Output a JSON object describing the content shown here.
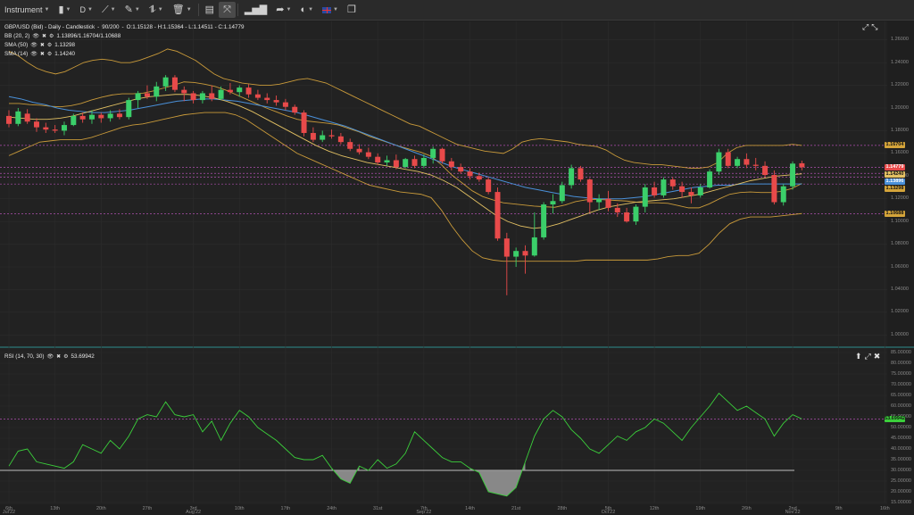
{
  "toolbar": {
    "instrument_label": "Instrument",
    "timeframe_label": "D",
    "flag": "uk-flag-icon"
  },
  "chart_header": {
    "title": "GBP/USD (Bid) - Daily - Candlestick",
    "candles_count": "90/200",
    "ohlc": "O:1.15128 - H:1.15364 - L:1.14511 - C:1.14779"
  },
  "indicators": [
    {
      "name": "BB (20, 2)",
      "value": "1.13896/1.16704/1.10688"
    },
    {
      "name": "SMA (50)",
      "value": "1.13298"
    },
    {
      "name": "SMA (14)",
      "value": "1.14240"
    }
  ],
  "rsi_header": {
    "name": "RSI (14, 70, 30)",
    "value": "53.69942"
  },
  "price_tags": [
    {
      "text": "1.16704",
      "price": 1.16704,
      "bg": "#d4a43a",
      "fg": "#111111"
    },
    {
      "text": "1.14779",
      "price": 1.14779,
      "bg": "#e84a4a",
      "fg": "#ffffff"
    },
    {
      "text": "1.14240",
      "price": 1.1424,
      "bg": "#e3c163",
      "fg": "#111111"
    },
    {
      "text": "1.13896",
      "price": 1.13896,
      "bg": "#4a90d9",
      "fg": "#ffffff"
    },
    {
      "text": "1.13298",
      "price": 1.13298,
      "bg": "#d4a43a",
      "fg": "#111111"
    },
    {
      "text": "1.10688",
      "price": 1.10688,
      "bg": "#d4a43a",
      "fg": "#111111"
    }
  ],
  "rsi_tag": {
    "text": "53.69942",
    "bg": "#3bcf3b",
    "fg": "#111111"
  },
  "price_axis": [
    "1.26000",
    "1.24000",
    "1.22000",
    "1.20000",
    "1.18000",
    "1.16000",
    "1.14000",
    "1.12000",
    "1.10000",
    "1.08000",
    "1.06000",
    "1.04000",
    "1.02000",
    "1.00000"
  ],
  "rsi_axis": [
    "85.00000",
    "80.00000",
    "75.00000",
    "70.00000",
    "65.00000",
    "60.00000",
    "55.00000",
    "50.00000",
    "45.00000",
    "40.00000",
    "35.00000",
    "30.00000",
    "25.00000",
    "20.00000",
    "15.00000"
  ],
  "x_axis": [
    {
      "label": "6th",
      "sub": "Jul'22"
    },
    {
      "label": "13th",
      "sub": ""
    },
    {
      "label": "20th",
      "sub": ""
    },
    {
      "label": "27th",
      "sub": ""
    },
    {
      "label": "3rd",
      "sub": "Aug'22"
    },
    {
      "label": "10th",
      "sub": ""
    },
    {
      "label": "17th",
      "sub": ""
    },
    {
      "label": "24th",
      "sub": ""
    },
    {
      "label": "31st",
      "sub": ""
    },
    {
      "label": "7th",
      "sub": "Sep'22"
    },
    {
      "label": "14th",
      "sub": ""
    },
    {
      "label": "21st",
      "sub": ""
    },
    {
      "label": "28th",
      "sub": ""
    },
    {
      "label": "5th",
      "sub": "Oct'22"
    },
    {
      "label": "12th",
      "sub": ""
    },
    {
      "label": "19th",
      "sub": ""
    },
    {
      "label": "26th",
      "sub": ""
    },
    {
      "label": "2nd",
      "sub": "Nov'22"
    },
    {
      "label": "9th",
      "sub": ""
    },
    {
      "label": "16th",
      "sub": ""
    }
  ],
  "chart_data": {
    "type": "candlestick",
    "title": "GBP/USD (Bid) - Daily - Candlestick",
    "price_range": [
      0.99,
      1.27
    ],
    "rsi_range": [
      15,
      85
    ],
    "rsi_levels": [
      70,
      30
    ],
    "colors": {
      "up": "#3bcf6a",
      "down": "#e84a4a",
      "bb": "#c99a3a",
      "sma50": "#4a90d9",
      "sma14": "#e3c163",
      "rsi": "#3bcf3b",
      "oversold_fill": "#9a9a9a"
    },
    "candles": [
      {
        "o": 1.193,
        "h": 1.198,
        "l": 1.183,
        "c": 1.186
      },
      {
        "o": 1.186,
        "h": 1.2,
        "l": 1.184,
        "c": 1.197
      },
      {
        "o": 1.195,
        "h": 1.199,
        "l": 1.186,
        "c": 1.188
      },
      {
        "o": 1.188,
        "h": 1.191,
        "l": 1.179,
        "c": 1.183
      },
      {
        "o": 1.183,
        "h": 1.187,
        "l": 1.178,
        "c": 1.181
      },
      {
        "o": 1.181,
        "h": 1.185,
        "l": 1.178,
        "c": 1.18
      },
      {
        "o": 1.18,
        "h": 1.188,
        "l": 1.176,
        "c": 1.185
      },
      {
        "o": 1.185,
        "h": 1.195,
        "l": 1.184,
        "c": 1.193
      },
      {
        "o": 1.193,
        "h": 1.196,
        "l": 1.187,
        "c": 1.19
      },
      {
        "o": 1.19,
        "h": 1.198,
        "l": 1.186,
        "c": 1.194
      },
      {
        "o": 1.194,
        "h": 1.196,
        "l": 1.187,
        "c": 1.191
      },
      {
        "o": 1.191,
        "h": 1.198,
        "l": 1.188,
        "c": 1.195
      },
      {
        "o": 1.195,
        "h": 1.199,
        "l": 1.19,
        "c": 1.192
      },
      {
        "o": 1.192,
        "h": 1.209,
        "l": 1.19,
        "c": 1.207
      },
      {
        "o": 1.207,
        "h": 1.215,
        "l": 1.2,
        "c": 1.213
      },
      {
        "o": 1.213,
        "h": 1.22,
        "l": 1.208,
        "c": 1.21
      },
      {
        "o": 1.21,
        "h": 1.223,
        "l": 1.206,
        "c": 1.219
      },
      {
        "o": 1.219,
        "h": 1.229,
        "l": 1.215,
        "c": 1.227
      },
      {
        "o": 1.227,
        "h": 1.229,
        "l": 1.214,
        "c": 1.216
      },
      {
        "o": 1.216,
        "h": 1.219,
        "l": 1.206,
        "c": 1.213
      },
      {
        "o": 1.213,
        "h": 1.215,
        "l": 1.204,
        "c": 1.207
      },
      {
        "o": 1.207,
        "h": 1.215,
        "l": 1.204,
        "c": 1.213
      },
      {
        "o": 1.213,
        "h": 1.22,
        "l": 1.206,
        "c": 1.208
      },
      {
        "o": 1.208,
        "h": 1.219,
        "l": 1.207,
        "c": 1.216
      },
      {
        "o": 1.216,
        "h": 1.222,
        "l": 1.212,
        "c": 1.214
      },
      {
        "o": 1.214,
        "h": 1.22,
        "l": 1.21,
        "c": 1.218
      },
      {
        "o": 1.218,
        "h": 1.221,
        "l": 1.209,
        "c": 1.212
      },
      {
        "o": 1.212,
        "h": 1.216,
        "l": 1.207,
        "c": 1.209
      },
      {
        "o": 1.209,
        "h": 1.213,
        "l": 1.204,
        "c": 1.207
      },
      {
        "o": 1.207,
        "h": 1.211,
        "l": 1.202,
        "c": 1.205
      },
      {
        "o": 1.205,
        "h": 1.208,
        "l": 1.198,
        "c": 1.201
      },
      {
        "o": 1.201,
        "h": 1.203,
        "l": 1.194,
        "c": 1.196
      },
      {
        "o": 1.196,
        "h": 1.198,
        "l": 1.175,
        "c": 1.178
      },
      {
        "o": 1.178,
        "h": 1.183,
        "l": 1.17,
        "c": 1.172
      },
      {
        "o": 1.172,
        "h": 1.18,
        "l": 1.17,
        "c": 1.176
      },
      {
        "o": 1.176,
        "h": 1.181,
        "l": 1.173,
        "c": 1.175
      },
      {
        "o": 1.175,
        "h": 1.178,
        "l": 1.168,
        "c": 1.17
      },
      {
        "o": 1.17,
        "h": 1.173,
        "l": 1.162,
        "c": 1.164
      },
      {
        "o": 1.164,
        "h": 1.168,
        "l": 1.159,
        "c": 1.161
      },
      {
        "o": 1.161,
        "h": 1.165,
        "l": 1.155,
        "c": 1.157
      },
      {
        "o": 1.157,
        "h": 1.16,
        "l": 1.15,
        "c": 1.152
      },
      {
        "o": 1.152,
        "h": 1.158,
        "l": 1.149,
        "c": 1.154
      },
      {
        "o": 1.154,
        "h": 1.159,
        "l": 1.146,
        "c": 1.148
      },
      {
        "o": 1.148,
        "h": 1.156,
        "l": 1.147,
        "c": 1.155
      },
      {
        "o": 1.155,
        "h": 1.158,
        "l": 1.147,
        "c": 1.149
      },
      {
        "o": 1.149,
        "h": 1.159,
        "l": 1.147,
        "c": 1.156
      },
      {
        "o": 1.156,
        "h": 1.166,
        "l": 1.151,
        "c": 1.164
      },
      {
        "o": 1.164,
        "h": 1.165,
        "l": 1.151,
        "c": 1.153
      },
      {
        "o": 1.153,
        "h": 1.156,
        "l": 1.145,
        "c": 1.148
      },
      {
        "o": 1.148,
        "h": 1.151,
        "l": 1.142,
        "c": 1.144
      },
      {
        "o": 1.144,
        "h": 1.147,
        "l": 1.137,
        "c": 1.14
      },
      {
        "o": 1.14,
        "h": 1.143,
        "l": 1.135,
        "c": 1.137
      },
      {
        "o": 1.137,
        "h": 1.139,
        "l": 1.124,
        "c": 1.126
      },
      {
        "o": 1.126,
        "h": 1.13,
        "l": 1.083,
        "c": 1.085
      },
      {
        "o": 1.085,
        "h": 1.09,
        "l": 1.035,
        "c": 1.069
      },
      {
        "o": 1.069,
        "h": 1.077,
        "l": 1.06,
        "c": 1.074
      },
      {
        "o": 1.074,
        "h": 1.079,
        "l": 1.054,
        "c": 1.07
      },
      {
        "o": 1.07,
        "h": 1.108,
        "l": 1.069,
        "c": 1.086
      },
      {
        "o": 1.086,
        "h": 1.117,
        "l": 1.084,
        "c": 1.115
      },
      {
        "o": 1.115,
        "h": 1.124,
        "l": 1.107,
        "c": 1.118
      },
      {
        "o": 1.118,
        "h": 1.135,
        "l": 1.116,
        "c": 1.132
      },
      {
        "o": 1.132,
        "h": 1.15,
        "l": 1.129,
        "c": 1.147
      },
      {
        "o": 1.147,
        "h": 1.149,
        "l": 1.135,
        "c": 1.137
      },
      {
        "o": 1.137,
        "h": 1.138,
        "l": 1.108,
        "c": 1.117
      },
      {
        "o": 1.117,
        "h": 1.124,
        "l": 1.11,
        "c": 1.12
      },
      {
        "o": 1.12,
        "h": 1.127,
        "l": 1.109,
        "c": 1.112
      },
      {
        "o": 1.112,
        "h": 1.116,
        "l": 1.104,
        "c": 1.108
      },
      {
        "o": 1.108,
        "h": 1.112,
        "l": 1.099,
        "c": 1.1
      },
      {
        "o": 1.1,
        "h": 1.115,
        "l": 1.097,
        "c": 1.113
      },
      {
        "o": 1.113,
        "h": 1.133,
        "l": 1.108,
        "c": 1.13
      },
      {
        "o": 1.13,
        "h": 1.135,
        "l": 1.121,
        "c": 1.123
      },
      {
        "o": 1.123,
        "h": 1.139,
        "l": 1.121,
        "c": 1.137
      },
      {
        "o": 1.137,
        "h": 1.139,
        "l": 1.128,
        "c": 1.131
      },
      {
        "o": 1.131,
        "h": 1.135,
        "l": 1.121,
        "c": 1.126
      },
      {
        "o": 1.126,
        "h": 1.13,
        "l": 1.116,
        "c": 1.123
      },
      {
        "o": 1.123,
        "h": 1.133,
        "l": 1.121,
        "c": 1.13
      },
      {
        "o": 1.13,
        "h": 1.146,
        "l": 1.129,
        "c": 1.144
      },
      {
        "o": 1.144,
        "h": 1.164,
        "l": 1.141,
        "c": 1.161
      },
      {
        "o": 1.161,
        "h": 1.164,
        "l": 1.147,
        "c": 1.149
      },
      {
        "o": 1.149,
        "h": 1.157,
        "l": 1.147,
        "c": 1.155
      },
      {
        "o": 1.155,
        "h": 1.16,
        "l": 1.147,
        "c": 1.15
      },
      {
        "o": 1.15,
        "h": 1.156,
        "l": 1.145,
        "c": 1.149
      },
      {
        "o": 1.149,
        "h": 1.153,
        "l": 1.139,
        "c": 1.141
      },
      {
        "o": 1.141,
        "h": 1.145,
        "l": 1.115,
        "c": 1.117
      },
      {
        "o": 1.117,
        "h": 1.133,
        "l": 1.114,
        "c": 1.131
      },
      {
        "o": 1.131,
        "h": 1.153,
        "l": 1.128,
        "c": 1.151
      },
      {
        "o": 1.1513,
        "h": 1.1536,
        "l": 1.1451,
        "c": 1.1478
      }
    ],
    "bb_upper": [
      1.25,
      1.246,
      1.24,
      1.235,
      1.232,
      1.23,
      1.232,
      1.236,
      1.24,
      1.242,
      1.243,
      1.242,
      1.24,
      1.24,
      1.242,
      1.245,
      1.248,
      1.252,
      1.25,
      1.246,
      1.242,
      1.236,
      1.23,
      1.226,
      1.224,
      1.222,
      1.221,
      1.22,
      1.22,
      1.221,
      1.223,
      1.225,
      1.226,
      1.224,
      1.222,
      1.218,
      1.214,
      1.21,
      1.206,
      1.202,
      1.198,
      1.194,
      1.19,
      1.186,
      1.184,
      1.18,
      1.176,
      1.172,
      1.168,
      1.166,
      1.164,
      1.162,
      1.161,
      1.16,
      1.164,
      1.17,
      1.172,
      1.173,
      1.172,
      1.171,
      1.17,
      1.168,
      1.167,
      1.166,
      1.163,
      1.158,
      1.154,
      1.152,
      1.151,
      1.15,
      1.15,
      1.149,
      1.148,
      1.147,
      1.147,
      1.148,
      1.152,
      1.16,
      1.165,
      1.167,
      1.167,
      1.167,
      1.167,
      1.167,
      1.168,
      1.167
    ],
    "bb_lower": [
      1.158,
      1.162,
      1.166,
      1.17,
      1.171,
      1.172,
      1.172,
      1.172,
      1.174,
      1.177,
      1.18,
      1.183,
      1.185,
      1.186,
      1.188,
      1.19,
      1.192,
      1.194,
      1.195,
      1.196,
      1.196,
      1.196,
      1.194,
      1.19,
      1.184,
      1.178,
      1.172,
      1.166,
      1.16,
      1.156,
      1.152,
      1.148,
      1.144,
      1.14,
      1.136,
      1.132,
      1.13,
      1.128,
      1.126,
      1.125,
      1.124,
      1.121,
      1.11,
      1.096,
      1.084,
      1.074,
      1.068,
      1.066,
      1.065,
      1.065,
      1.065,
      1.065,
      1.065,
      1.065,
      1.065,
      1.065,
      1.066,
      1.066,
      1.066,
      1.066,
      1.066,
      1.066,
      1.066,
      1.067,
      1.069,
      1.07,
      1.07,
      1.072,
      1.08,
      1.09,
      1.098,
      1.102,
      1.104,
      1.104,
      1.104,
      1.105,
      1.106,
      1.107
    ],
    "sma50": [
      1.21,
      1.208,
      1.205,
      1.203,
      1.2,
      1.198,
      1.197,
      1.196,
      1.196,
      1.197,
      1.198,
      1.2,
      1.202,
      1.204,
      1.206,
      1.207,
      1.208,
      1.208,
      1.207,
      1.206,
      1.204,
      1.202,
      1.2,
      1.198,
      1.196,
      1.193,
      1.19,
      1.187,
      1.184,
      1.18,
      1.176,
      1.172,
      1.168,
      1.164,
      1.16,
      1.156,
      1.152,
      1.148,
      1.145,
      1.142,
      1.139,
      1.136,
      1.133,
      1.13,
      1.128,
      1.126,
      1.124,
      1.122,
      1.121,
      1.12,
      1.12,
      1.12,
      1.121,
      1.122,
      1.124,
      1.126,
      1.128,
      1.13,
      1.131,
      1.132,
      1.132,
      1.133,
      1.133,
      1.133,
      1.133,
      1.133,
      1.133
    ],
    "sma14": [
      1.192,
      1.191,
      1.19,
      1.19,
      1.191,
      1.193,
      1.196,
      1.199,
      1.202,
      1.205,
      1.208,
      1.21,
      1.211,
      1.212,
      1.212,
      1.211,
      1.209,
      1.206,
      1.202,
      1.197,
      1.191,
      1.185,
      1.179,
      1.173,
      1.167,
      1.162,
      1.158,
      1.155,
      1.152,
      1.15,
      1.148,
      1.146,
      1.144,
      1.141,
      1.136,
      1.13,
      1.122,
      1.114,
      1.106,
      1.1,
      1.096,
      1.094,
      1.095,
      1.098,
      1.102,
      1.106,
      1.11,
      1.113,
      1.115,
      1.117,
      1.118,
      1.119,
      1.12,
      1.122,
      1.124,
      1.127,
      1.13,
      1.133,
      1.136,
      1.138,
      1.14,
      1.141,
      1.142
    ],
    "rsi": [
      32,
      39,
      40,
      34,
      33,
      32,
      31,
      34,
      42,
      40,
      38,
      44,
      40,
      46,
      54,
      56,
      55,
      62,
      56,
      55,
      56,
      48,
      53,
      44,
      52,
      58,
      55,
      50,
      47,
      44,
      40,
      36,
      35,
      35,
      37,
      31,
      26,
      24,
      32,
      30,
      35,
      31,
      33,
      38,
      48,
      44,
      40,
      36,
      34,
      34,
      31,
      29,
      20,
      19,
      18,
      22,
      34,
      46,
      54,
      58,
      55,
      49,
      45,
      40,
      38,
      42,
      46,
      44,
      48,
      50,
      54,
      52,
      48,
      44,
      50,
      55,
      60,
      66,
      62,
      58,
      60,
      57,
      54,
      46,
      52,
      56,
      54
    ]
  }
}
